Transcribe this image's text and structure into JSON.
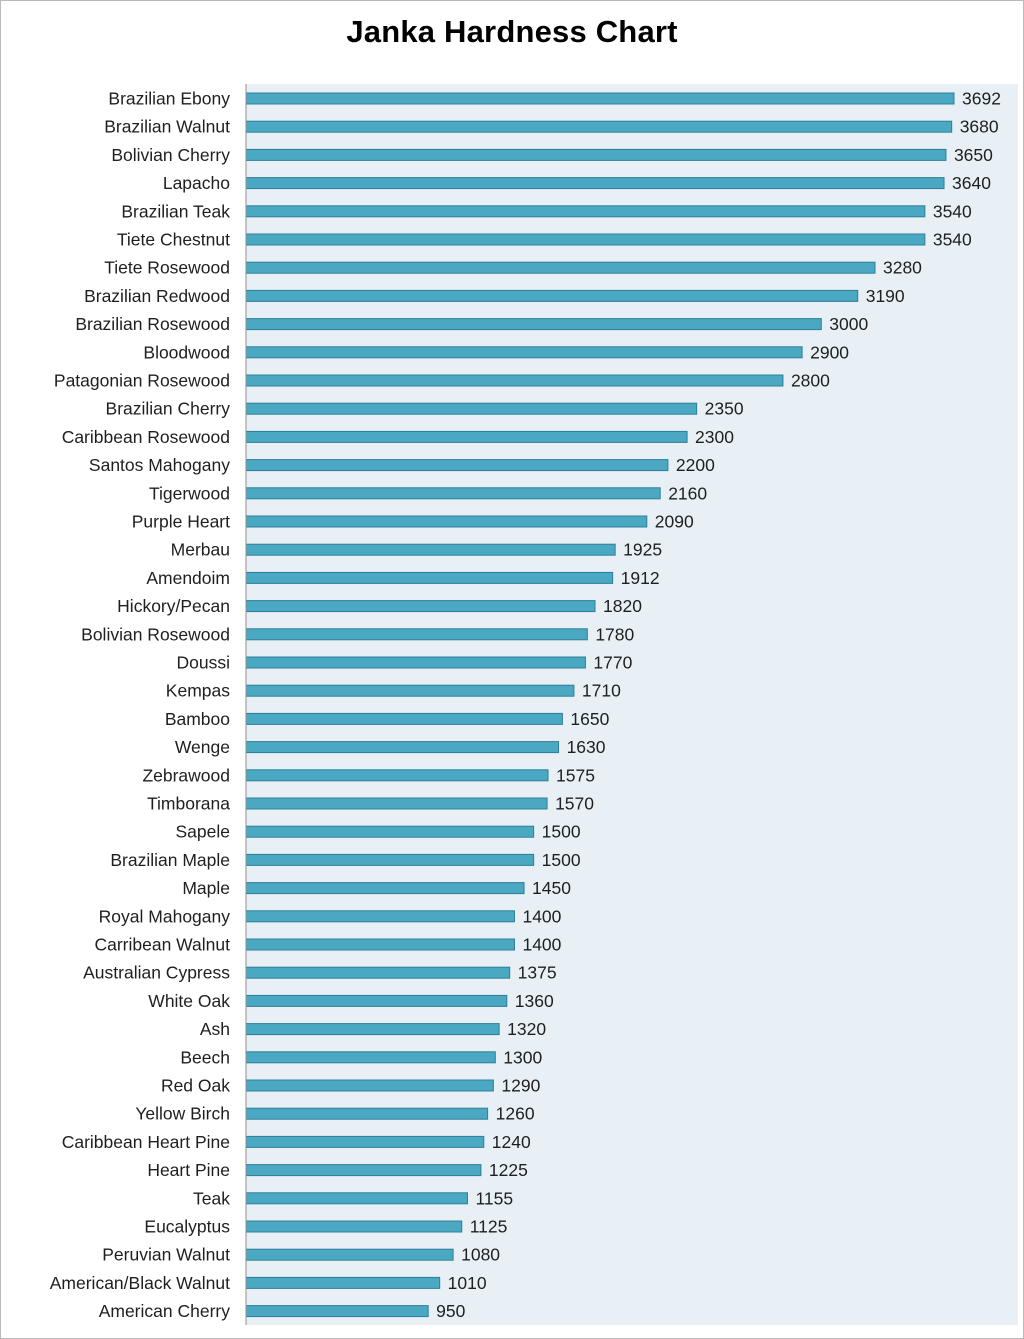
{
  "chart_data": {
    "type": "bar",
    "orientation": "horizontal",
    "title": "Janka Hardness Chart",
    "xlabel": "",
    "ylabel": "",
    "grid": false,
    "legend": "none",
    "xlim": [
      0,
      3800
    ],
    "colors": {
      "bar": "#4aa8c2",
      "bar_edge": "#2d7f98",
      "plot_background": "#e8f0f5",
      "axis": "#8f8f8f"
    },
    "categories": [
      "Brazilian Ebony",
      "Brazilian Walnut",
      "Bolivian Cherry",
      "Lapacho",
      "Brazilian Teak",
      "Tiete Chestnut",
      "Tiete Rosewood",
      "Brazilian Redwood",
      "Brazilian Rosewood",
      "Bloodwood",
      "Patagonian Rosewood",
      "Brazilian Cherry",
      "Caribbean Rosewood",
      "Santos Mahogany",
      "Tigerwood",
      "Purple Heart",
      "Merbau",
      "Amendoim",
      "Hickory/Pecan",
      "Bolivian Rosewood",
      "Doussi",
      "Kempas",
      "Bamboo",
      "Wenge",
      "Zebrawood",
      "Timborana",
      "Sapele",
      "Brazilian Maple",
      "Maple",
      "Royal Mahogany",
      "Carribean Walnut",
      "Australian Cypress",
      "White Oak",
      "Ash",
      "Beech",
      "Red Oak",
      "Yellow Birch",
      "Caribbean Heart Pine",
      "Heart Pine",
      "Teak",
      "Eucalyptus",
      "Peruvian Walnut",
      "American/Black Walnut",
      "American Cherry"
    ],
    "values": [
      3692,
      3680,
      3650,
      3640,
      3540,
      3540,
      3280,
      3190,
      3000,
      2900,
      2800,
      2350,
      2300,
      2200,
      2160,
      2090,
      1925,
      1912,
      1820,
      1780,
      1770,
      1710,
      1650,
      1630,
      1575,
      1570,
      1500,
      1500,
      1450,
      1400,
      1400,
      1375,
      1360,
      1320,
      1300,
      1290,
      1260,
      1240,
      1225,
      1155,
      1125,
      1080,
      1010,
      950
    ]
  }
}
